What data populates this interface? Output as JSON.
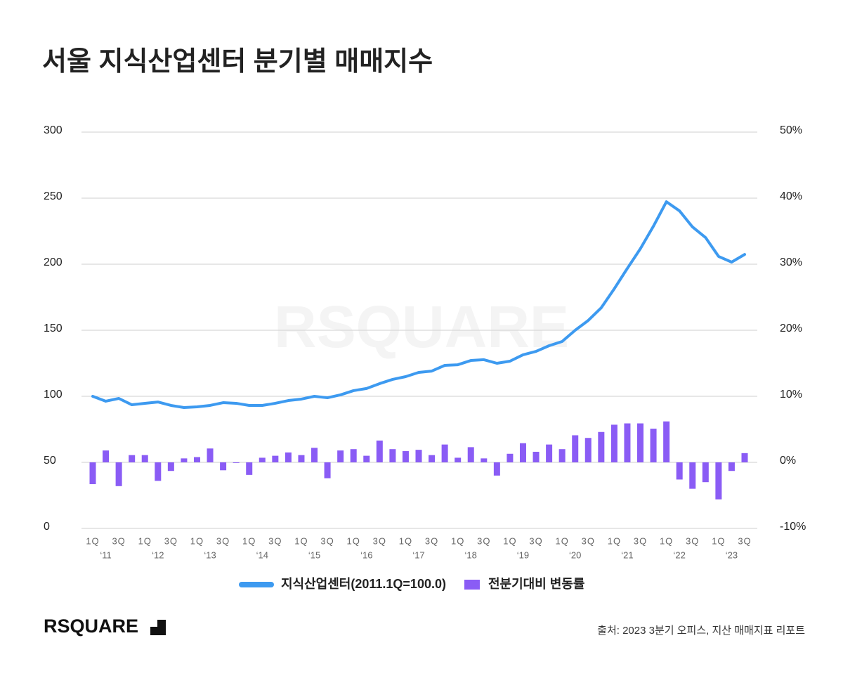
{
  "chart_data": {
    "type": "combo",
    "title": "서울 지식산업센터 분기별 매매지수",
    "watermark": "RSQUARE",
    "logo": "RSQUARE",
    "source": "출처: 2023 3분기 오피스, 지산 매매지표 리포트",
    "categories": [
      "1Q",
      null,
      "3Q",
      null,
      "1Q",
      null,
      "3Q",
      null,
      "1Q",
      null,
      "3Q",
      null,
      "1Q",
      null,
      "3Q",
      null,
      "1Q",
      null,
      "3Q",
      null,
      "1Q",
      null,
      "3Q",
      null,
      "1Q",
      null,
      "3Q",
      null,
      "1Q",
      null,
      "3Q",
      null,
      "1Q",
      null,
      "3Q",
      null,
      "1Q",
      null,
      "3Q",
      null,
      "1Q",
      null,
      "3Q",
      null,
      "1Q",
      null,
      "3Q",
      null,
      "1Q",
      null,
      "3Q"
    ],
    "year_labels": [
      "‘11",
      "‘12",
      "‘13",
      "‘14",
      "‘15",
      "‘16",
      "‘17",
      "‘18",
      "‘19",
      "‘20",
      "‘21",
      "‘22",
      "‘23"
    ],
    "series": [
      {
        "name": "지식산업센터(2011.1Q=100.0)",
        "type": "line",
        "color": "#3d9af0",
        "values": [
          100,
          96.3,
          98.4,
          93.6,
          94.7,
          95.7,
          93.1,
          91.5,
          92,
          93.1,
          95.2,
          94.7,
          93.1,
          93.1,
          94.7,
          96.8,
          97.9,
          100,
          98.9,
          101.1,
          104.3,
          105.9,
          109.6,
          112.8,
          114.9,
          118.1,
          119.1,
          123.4,
          123.9,
          127.1,
          127.7,
          125,
          126.6,
          131.4,
          134,
          138.3,
          141.5,
          150,
          157.4,
          167,
          181.4,
          196.8,
          211.7,
          228.7,
          247.3,
          240.4,
          228.2,
          220.2,
          205.9,
          201.6,
          207.4
        ]
      },
      {
        "name": "전분기대비 변동률",
        "type": "bar",
        "axis": "y2",
        "color": "#8a5cf5",
        "values": [
          -3.3,
          1.8,
          -3.6,
          1.1,
          1.1,
          -2.8,
          -1.3,
          0.6,
          0.8,
          2.1,
          -1.2,
          -0.1,
          -1.9,
          0.7,
          1.0,
          1.5,
          1.1,
          2.2,
          -2.4,
          1.8,
          2.0,
          1.0,
          3.3,
          2.0,
          1.7,
          1.9,
          1.1,
          2.7,
          0.7,
          2.3,
          0.6,
          -2.0,
          1.3,
          2.9,
          1.6,
          2.7,
          2.0,
          4.1,
          3.7,
          4.6,
          5.7,
          5.9,
          5.9,
          5.1,
          6.2,
          -2.6,
          -4.0,
          -3.0,
          -5.6,
          -1.3,
          1.4
        ]
      }
    ],
    "ylim": [
      0,
      300
    ],
    "yticks": [
      0,
      50,
      100,
      150,
      200,
      250,
      300
    ],
    "y2lim": [
      -10,
      50
    ],
    "y2ticks": [
      {
        "value": -10,
        "label": "-10%"
      },
      {
        "value": 0,
        "label": "0%"
      },
      {
        "value": 10,
        "label": "10%"
      },
      {
        "value": 20,
        "label": "20%"
      },
      {
        "value": 30,
        "label": "30%"
      },
      {
        "value": 40,
        "label": "40%"
      },
      {
        "value": 50,
        "label": "50%"
      }
    ],
    "grid": true,
    "legend": "bottom"
  }
}
